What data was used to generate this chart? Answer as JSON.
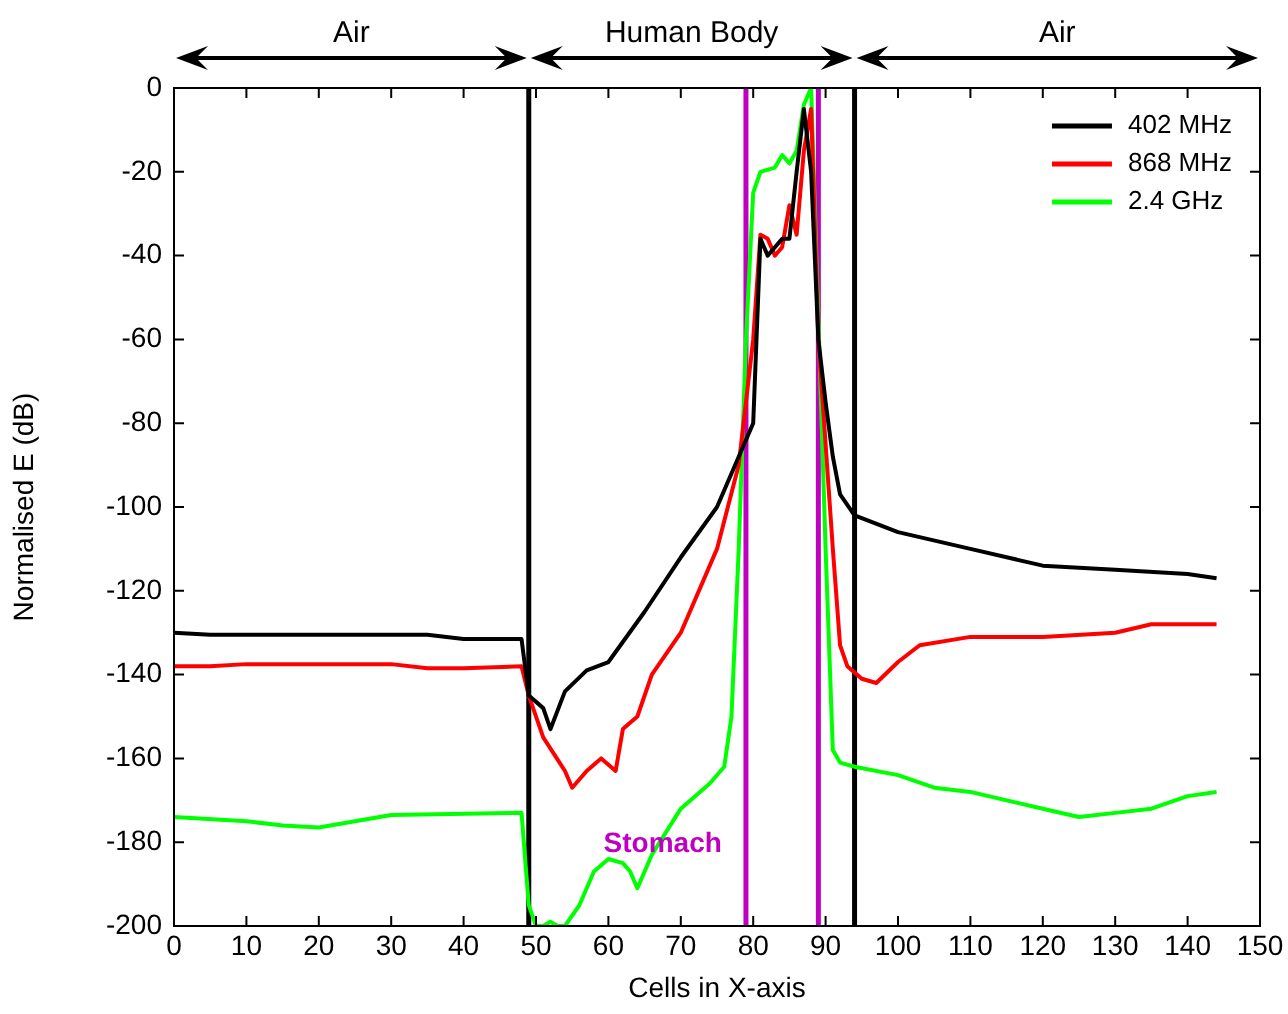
{
  "chart_data": {
    "type": "line",
    "xlabel": "Cells in X-axis",
    "ylabel": "Normalised E (dB)",
    "xlim": [
      0,
      150
    ],
    "xticks": [
      0,
      10,
      20,
      30,
      40,
      50,
      60,
      70,
      80,
      90,
      100,
      110,
      120,
      130,
      140,
      150
    ],
    "ylim": [
      -200,
      0
    ],
    "yticks": [
      -200,
      -180,
      -160,
      -140,
      -120,
      -100,
      -80,
      -60,
      -40,
      -20,
      0
    ],
    "grid": false,
    "legend": "top right",
    "marker": "none",
    "line_style": "solid",
    "series": [
      {
        "name": "402 MHz",
        "color": "#000000",
        "x": [
          0,
          5,
          10,
          20,
          30,
          35,
          40,
          48,
          49,
          51,
          52,
          54,
          57,
          60,
          65,
          70,
          75,
          78,
          80,
          81,
          82,
          83,
          84,
          85,
          86,
          87,
          88,
          89,
          90,
          91,
          92,
          94,
          100,
          110,
          120,
          130,
          140,
          144
        ],
        "values": [
          -130,
          -130.5,
          -130.5,
          -130.5,
          -130.5,
          -130.5,
          -131.5,
          -131.5,
          -145,
          -148,
          -153,
          -144,
          -139,
          -137,
          -125,
          -112,
          -100,
          -88,
          -80,
          -36,
          -40,
          -38,
          -36,
          -36,
          -20,
          -5,
          -20,
          -60,
          -75,
          -88,
          -97,
          -102,
          -106,
          -110,
          -114,
          -115,
          -116,
          -117
        ]
      },
      {
        "name": "868 MHz",
        "color": "#ff0000",
        "x": [
          0,
          5,
          10,
          20,
          30,
          35,
          40,
          48,
          49,
          51,
          54,
          55,
          57,
          59,
          61,
          62,
          64,
          66,
          70,
          75,
          78,
          80,
          81,
          82,
          83,
          84,
          85,
          86,
          87,
          88,
          89,
          91,
          92,
          93,
          95,
          97,
          100,
          103,
          110,
          120,
          130,
          135,
          144
        ],
        "values": [
          -138,
          -138,
          -137.5,
          -137.5,
          -137.5,
          -138.5,
          -138.5,
          -138,
          -145,
          -155,
          -163,
          -167,
          -163,
          -160,
          -163,
          -153,
          -150,
          -140,
          -130,
          -110,
          -90,
          -60,
          -35,
          -36,
          -40,
          -38,
          -28,
          -35,
          -15,
          -5,
          -60,
          -110,
          -133,
          -138,
          -141,
          -142,
          -137,
          -133,
          -131,
          -131,
          -130,
          -128,
          -128
        ]
      },
      {
        "name": "2.4 GHz",
        "color": "#00ff00",
        "x": [
          0,
          10,
          15,
          20,
          25,
          30,
          48,
          49,
          50,
          51,
          52,
          53,
          54,
          56,
          58,
          60,
          62,
          63,
          64,
          66,
          70,
          74,
          76,
          77,
          78,
          79,
          80,
          81,
          83,
          84,
          85,
          86,
          87,
          88,
          89,
          90,
          91,
          92,
          94,
          100,
          105,
          110,
          120,
          125,
          130,
          135,
          140,
          144
        ],
        "values": [
          -174,
          -175,
          -176,
          -176.5,
          -175,
          -173.5,
          -173,
          -195,
          -200,
          -200,
          -199,
          -200,
          -200,
          -195,
          -187,
          -184,
          -185,
          -187,
          -191,
          -183,
          -172,
          -166,
          -162,
          -150,
          -110,
          -60,
          -25,
          -20,
          -19,
          -16,
          -18,
          -15,
          -4,
          0,
          -55,
          -110,
          -158,
          -161,
          -162,
          -164,
          -167,
          -168,
          -172,
          -174,
          -173,
          -172,
          -169,
          -168
        ]
      }
    ],
    "ref_lines": [
      {
        "axis": "x",
        "value": 49,
        "color": "#000000"
      },
      {
        "axis": "x",
        "value": 79,
        "color": "#c000c0"
      },
      {
        "axis": "x",
        "value": 89,
        "color": "#c000c0"
      },
      {
        "axis": "x",
        "value": 94,
        "color": "#000000"
      }
    ],
    "annotations": [
      "Air",
      "Human Body",
      "Air",
      {
        "text": "Stomach",
        "x": 67.5,
        "y": -180.5
      }
    ]
  }
}
